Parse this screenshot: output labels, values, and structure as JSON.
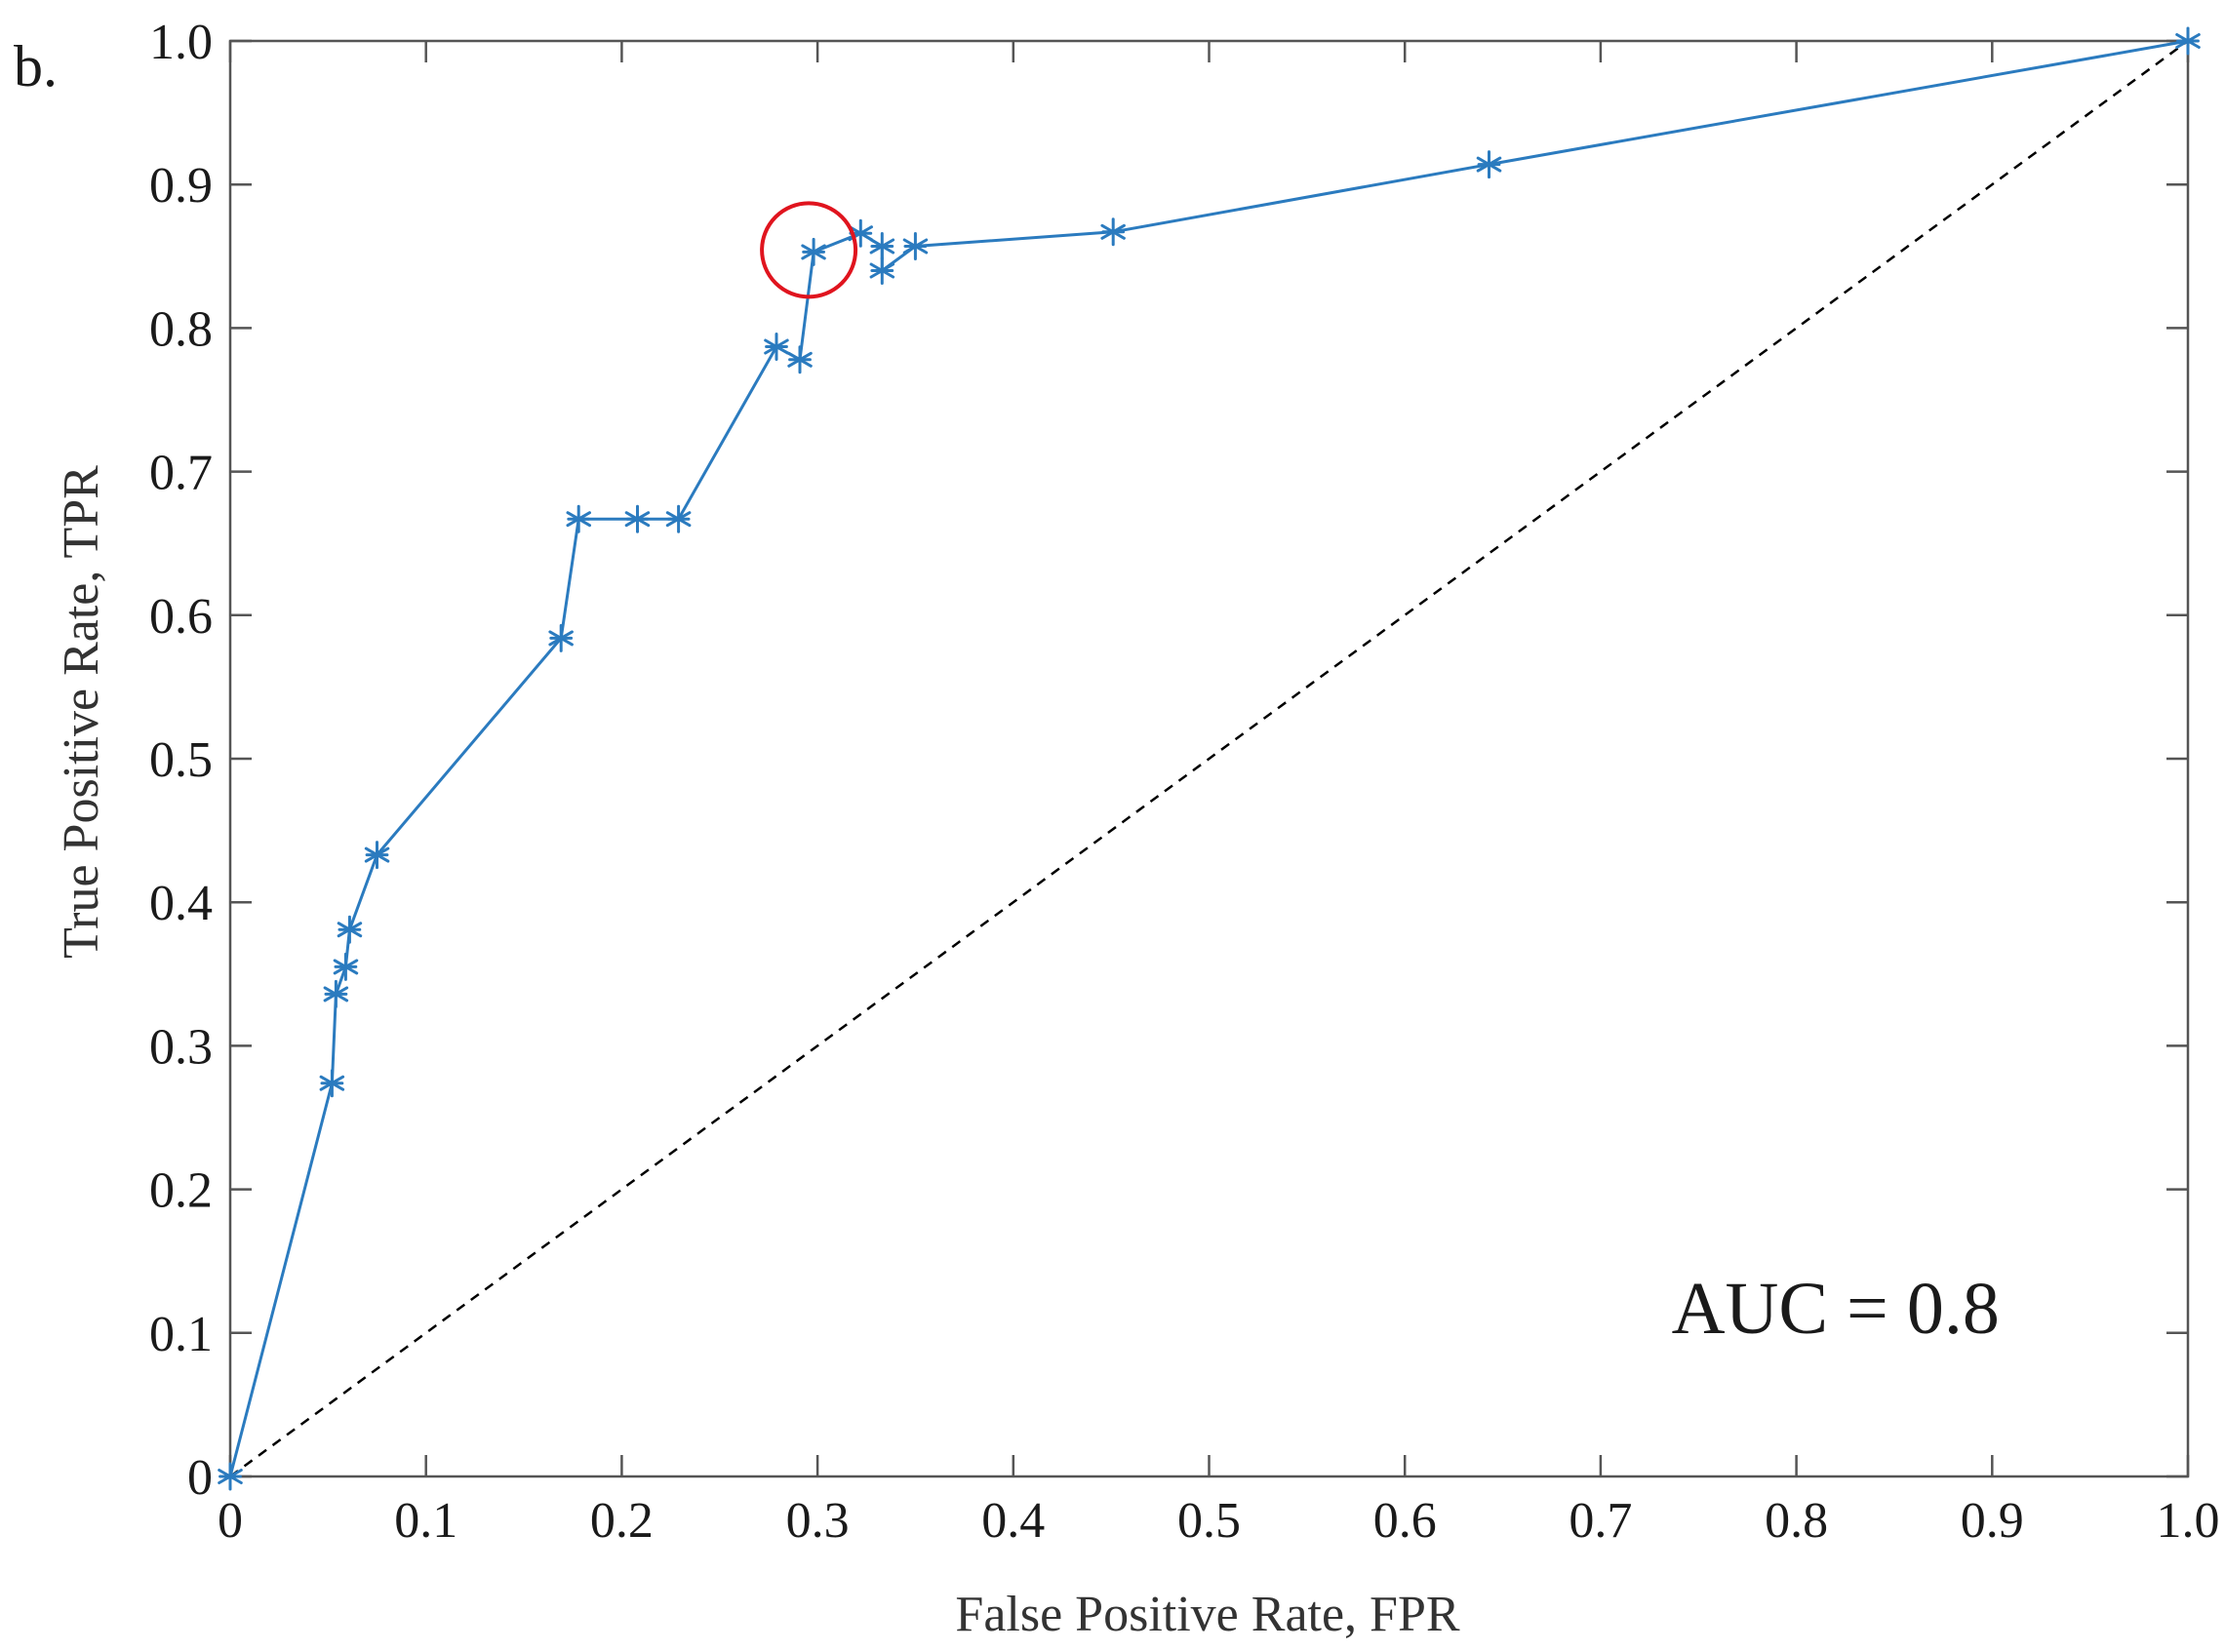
{
  "chart_data": {
    "type": "line",
    "panel_label": "b.",
    "xlabel": "False Positive Rate, FPR",
    "ylabel": "True Positive Rate, TPR",
    "xlim": [
      0,
      1
    ],
    "ylim": [
      0,
      1
    ],
    "x_ticks": [
      {
        "value": 0,
        "label": "0"
      },
      {
        "value": 0.1,
        "label": "0.1"
      },
      {
        "value": 0.2,
        "label": "0.2"
      },
      {
        "value": 0.3,
        "label": "0.3"
      },
      {
        "value": 0.4,
        "label": "0.4"
      },
      {
        "value": 0.5,
        "label": "0.5"
      },
      {
        "value": 0.6,
        "label": "0.6"
      },
      {
        "value": 0.7,
        "label": "0.7"
      },
      {
        "value": 0.8,
        "label": "0.8"
      },
      {
        "value": 0.9,
        "label": "0.9"
      },
      {
        "value": 1.0,
        "label": "1.0"
      }
    ],
    "y_ticks": [
      {
        "value": 0,
        "label": "0"
      },
      {
        "value": 0.1,
        "label": "0.1"
      },
      {
        "value": 0.2,
        "label": "0.2"
      },
      {
        "value": 0.3,
        "label": "0.3"
      },
      {
        "value": 0.4,
        "label": "0.4"
      },
      {
        "value": 0.5,
        "label": "0.5"
      },
      {
        "value": 0.6,
        "label": "0.6"
      },
      {
        "value": 0.7,
        "label": "0.7"
      },
      {
        "value": 0.8,
        "label": "0.8"
      },
      {
        "value": 0.9,
        "label": "0.9"
      },
      {
        "value": 1.0,
        "label": "1.0"
      }
    ],
    "grid": false,
    "series": [
      {
        "color": "#2b7bbf",
        "marker": "asterisk",
        "points": [
          [
            0,
            0
          ],
          [
            0.052,
            0.274
          ],
          [
            0.054,
            0.336
          ],
          [
            0.059,
            0.355
          ],
          [
            0.061,
            0.381
          ],
          [
            0.075,
            0.433
          ],
          [
            0.169,
            0.584
          ],
          [
            0.178,
            0.667
          ],
          [
            0.208,
            0.667
          ],
          [
            0.229,
            0.667
          ],
          [
            0.279,
            0.787
          ],
          [
            0.291,
            0.778
          ],
          [
            0.298,
            0.853
          ],
          [
            0.322,
            0.866
          ],
          [
            0.333,
            0.857
          ],
          [
            0.333,
            0.84
          ],
          [
            0.35,
            0.857
          ],
          [
            0.451,
            0.867
          ],
          [
            0.643,
            0.914
          ],
          [
            1.0,
            1.0
          ]
        ]
      }
    ],
    "reference_line": {
      "from": [
        0,
        0
      ],
      "to": [
        1,
        1
      ],
      "style": "dashed",
      "color": "#000000"
    },
    "highlight": {
      "point": [
        0.298,
        0.853
      ],
      "color": "#e0141e"
    },
    "annotations": [
      {
        "text": "AUC = 0.8",
        "x": 0.82,
        "y": 0.1
      }
    ]
  }
}
